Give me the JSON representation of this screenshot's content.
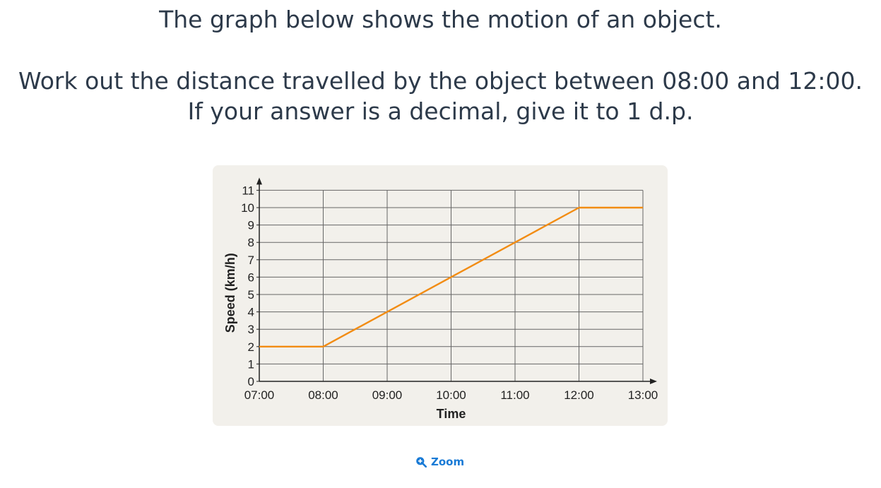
{
  "question": {
    "line1": "The graph below shows the motion of an object.",
    "line2": "Work out the distance travelled by the object between 08:00 and 12:00.",
    "line3": "If your answer is a decimal, give it to 1 d.p."
  },
  "zoom": {
    "label": "Zoom",
    "icon": "zoom-in-icon"
  },
  "colors": {
    "line": "#f28c13",
    "grid": "#666666",
    "card_bg": "#f2f0eb",
    "link": "#1a7bd6"
  },
  "chart_data": {
    "type": "line",
    "title": "",
    "xlabel": "Time",
    "ylabel": "Speed (km/h)",
    "x_ticks": [
      "07:00",
      "08:00",
      "09:00",
      "10:00",
      "11:00",
      "12:00",
      "13:00"
    ],
    "y_ticks": [
      0,
      1,
      2,
      3,
      4,
      5,
      6,
      7,
      8,
      9,
      10,
      11
    ],
    "xlim": [
      "07:00",
      "13:00"
    ],
    "ylim": [
      0,
      11
    ],
    "grid": true,
    "series": [
      {
        "points": [
          {
            "x": "07:00",
            "y": 2
          },
          {
            "x": "08:00",
            "y": 2
          },
          {
            "x": "12:00",
            "y": 10
          },
          {
            "x": "13:00",
            "y": 10
          }
        ]
      }
    ]
  }
}
